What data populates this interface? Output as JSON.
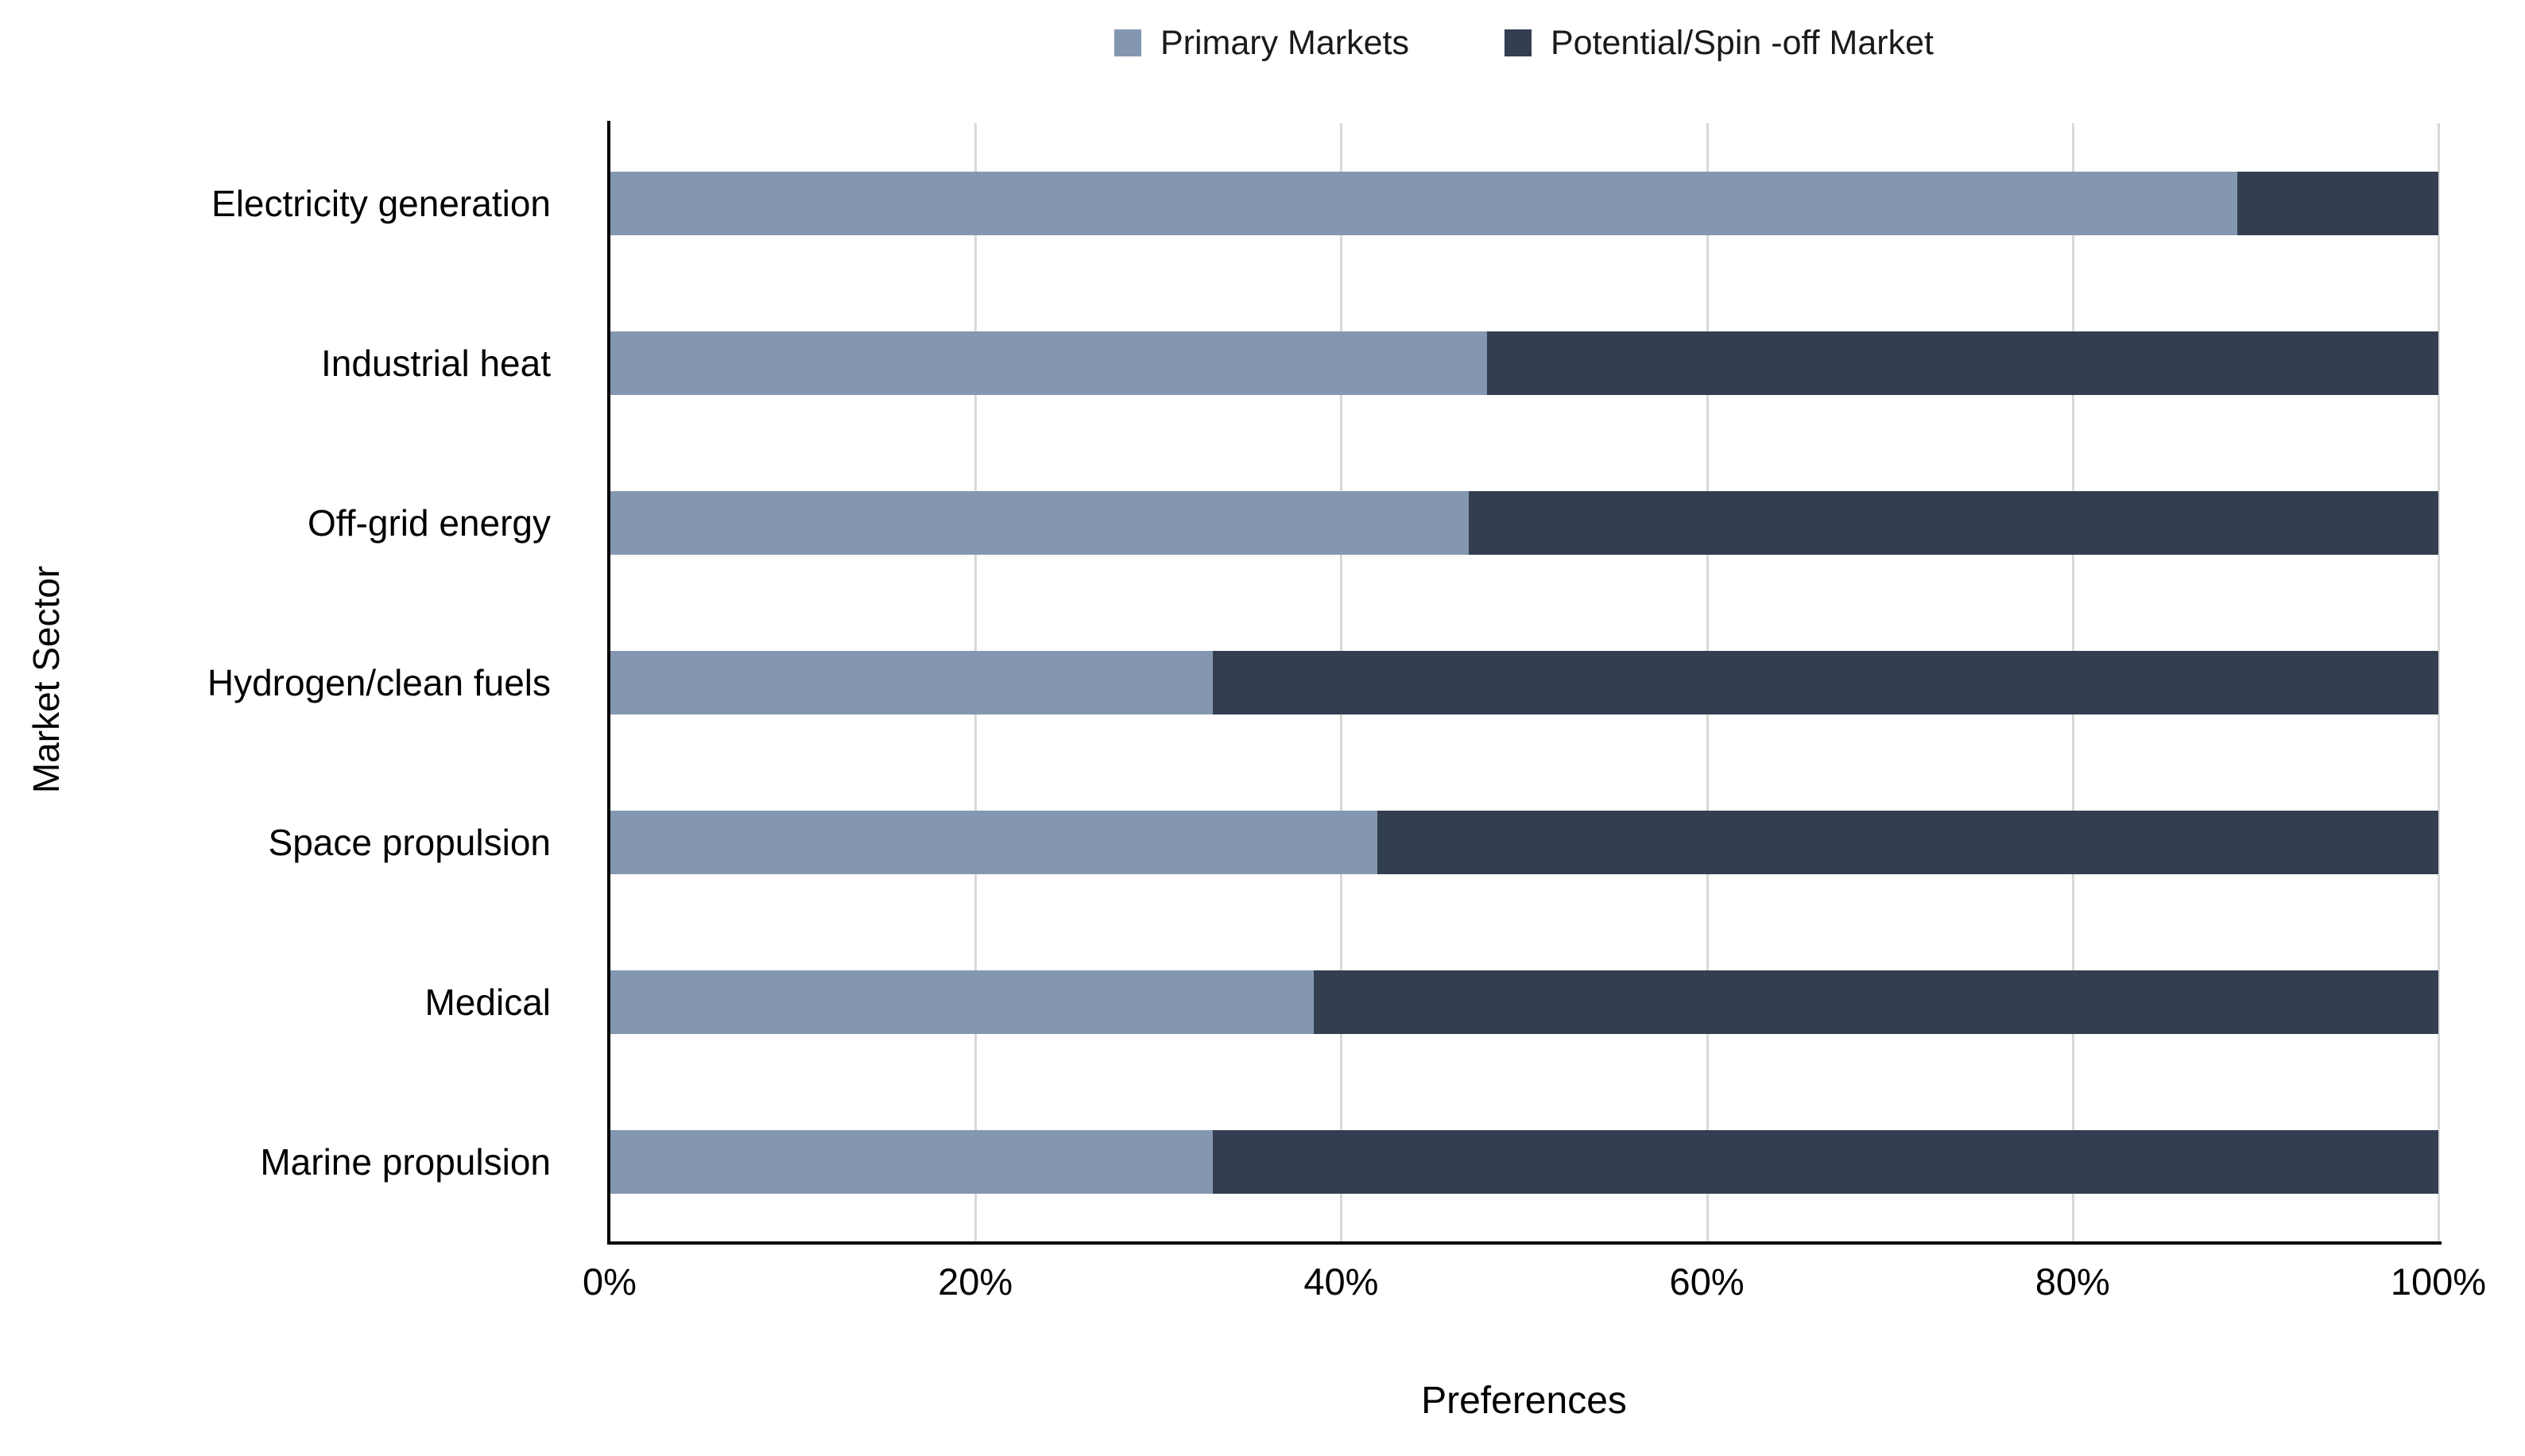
{
  "chart_data": {
    "type": "bar",
    "orientation": "horizontal",
    "stacked": true,
    "categories": [
      "Electricity generation",
      "Industrial heat",
      "Off-grid energy",
      "Hydrogen/clean fuels",
      "Space propulsion",
      "Medical",
      "Marine propulsion"
    ],
    "series": [
      {
        "name": "Primary Markets",
        "color": "#8497B0",
        "values": [
          89,
          48,
          47,
          33,
          42,
          38.5,
          33
        ]
      },
      {
        "name": "Potential/Spin -off Market",
        "color": "#333F50",
        "values": [
          11,
          52,
          53,
          67,
          58,
          61.5,
          67
        ]
      }
    ],
    "xlabel": "Preferences",
    "ylabel": "Market Sector",
    "xlim": [
      0,
      100
    ],
    "xtick_labels": [
      "0%",
      "20%",
      "40%",
      "60%",
      "80%",
      "100%"
    ],
    "xtick_values": [
      0,
      20,
      40,
      60,
      80,
      100
    ],
    "grid": "vertical",
    "gridline_values": [
      20,
      40,
      60,
      80,
      100
    ],
    "legend_position": "top-center"
  },
  "colors": {
    "primary_series": "#8497B0",
    "potential_series": "#333F50",
    "gridline": "#D9D9D9",
    "axis_line": "#000000",
    "text": "#000000",
    "background": "#FFFFFF"
  }
}
